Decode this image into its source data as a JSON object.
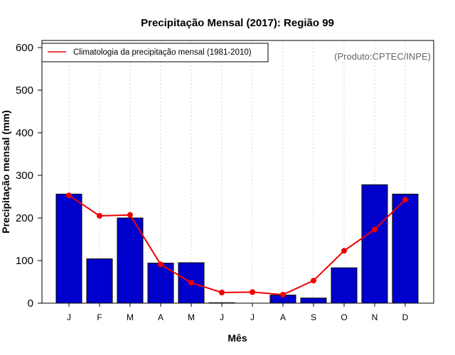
{
  "chart_data": {
    "type": "bar",
    "title": "Precipitação Mensal (2017): Região 99",
    "xlabel": "Mês",
    "ylabel": "Precipitação mensal (mm)",
    "ylim": [
      0,
      600
    ],
    "yticks": [
      0,
      100,
      200,
      300,
      400,
      500,
      600
    ],
    "grid": "vertical-dotted",
    "categories": [
      "J",
      "F",
      "M",
      "A",
      "M",
      "J",
      "J",
      "A",
      "S",
      "O",
      "N",
      "D"
    ],
    "series": [
      {
        "name": "Precipitação mensal (2017)",
        "kind": "bar",
        "color": "#0000CC",
        "values": [
          256,
          104,
          200,
          94,
          95,
          1,
          0,
          19,
          12,
          83,
          278,
          256
        ]
      },
      {
        "name": "Climatologia da precipitação mensal (1981-2010)",
        "kind": "line",
        "color": "#EE0000",
        "values": [
          253,
          205,
          207,
          91,
          48,
          25,
          26,
          20,
          53,
          123,
          173,
          243
        ]
      }
    ],
    "legend": {
      "position": "top-left",
      "label": "Climatologia da precipitação mensal (1981-2010)"
    },
    "annotation": "(Produto:CPTEC/INPE)"
  }
}
